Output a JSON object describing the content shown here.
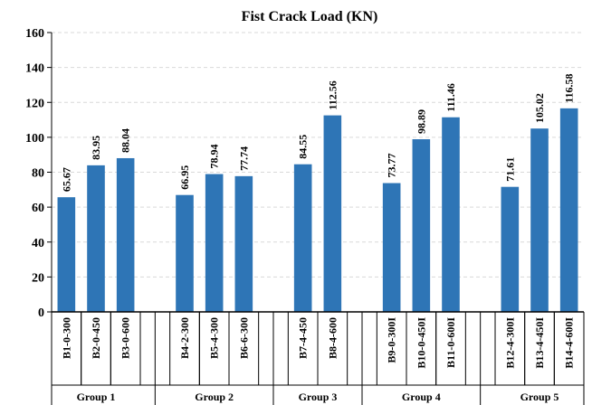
{
  "chart_data": {
    "type": "bar",
    "title": "Fist Crack Load (KN)",
    "xlabel": "",
    "ylabel": "",
    "ylim": [
      0,
      160
    ],
    "yticks": [
      0,
      20,
      40,
      60,
      80,
      100,
      120,
      140,
      160
    ],
    "grid": true,
    "categories": [
      "B1-0-300",
      "B2-0-450",
      "B3-0-600",
      "B4-2-300",
      "B5-4-300",
      "B6-6-300",
      "B7-4-450",
      "B8-4-600",
      "B9-0-300I",
      "B10-0-450I",
      "B11-0-600I",
      "B12-4-300I",
      "B13-4-450I",
      "B14-4-600I"
    ],
    "values": [
      65.67,
      83.95,
      88.04,
      66.95,
      78.94,
      77.74,
      84.55,
      112.56,
      73.77,
      98.89,
      111.46,
      71.61,
      105.02,
      116.58
    ],
    "data_labels": [
      "65.67",
      "83.95",
      "88.04",
      "66.95",
      "78.94",
      "77.74",
      "84.55",
      "112.56",
      "73.77",
      "98.89",
      "111.46",
      "71.61",
      "105.02",
      "116.58"
    ],
    "groups": [
      {
        "name": "Group 1",
        "categories": [
          "B1-0-300",
          "B2-0-450",
          "B3-0-600"
        ]
      },
      {
        "name": "Group 2",
        "categories": [
          "B4-2-300",
          "B5-4-300",
          "B6-6-300"
        ]
      },
      {
        "name": "Group 3",
        "categories": [
          "B7-4-450",
          "B8-4-600"
        ]
      },
      {
        "name": "Group 4",
        "categories": [
          "B9-0-300I",
          "B10-0-450I",
          "B11-0-600I"
        ]
      },
      {
        "name": "Group 5",
        "categories": [
          "B12-4-300I",
          "B13-4-450I",
          "B14-4-600I"
        ]
      }
    ],
    "bar_color": "#2E75B6",
    "grid_color": "#D9D9D9"
  }
}
